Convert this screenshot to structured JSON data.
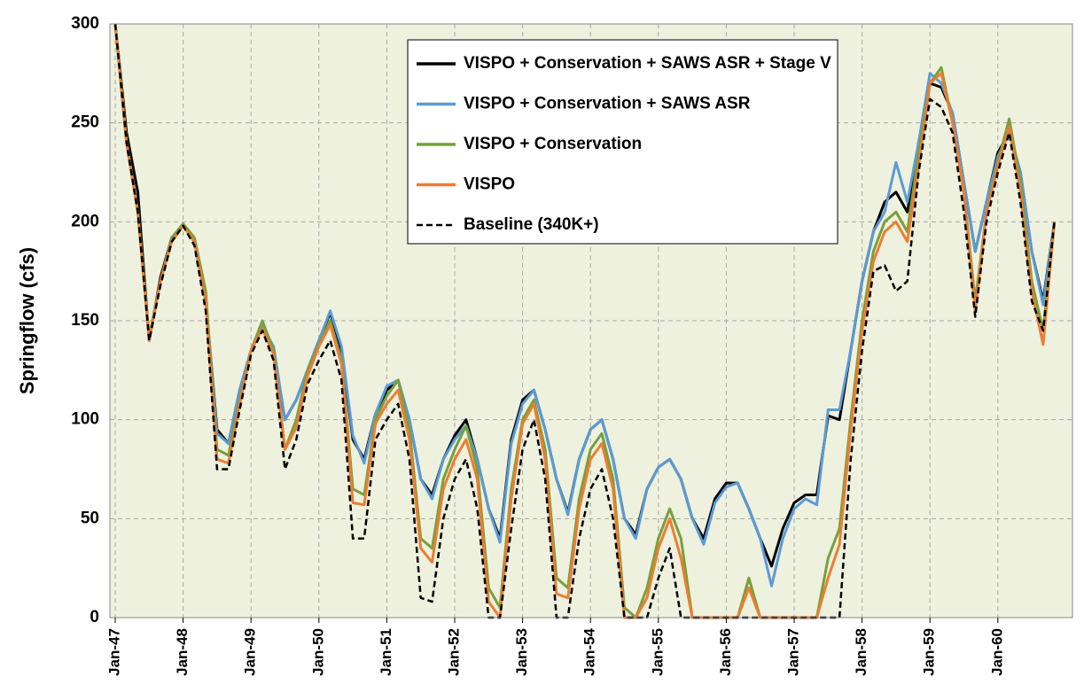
{
  "chart_data": {
    "type": "line",
    "y_label": "Springflow (cfs)",
    "categories": [
      "Jan-47",
      null,
      null,
      null,
      null,
      null,
      "Jan-48",
      null,
      null,
      null,
      null,
      null,
      "Jan-49",
      null,
      null,
      null,
      null,
      null,
      "Jan-50",
      null,
      null,
      null,
      null,
      null,
      "Jan-51",
      null,
      null,
      null,
      null,
      null,
      "Jan-52",
      null,
      null,
      null,
      null,
      null,
      "Jan-53",
      null,
      null,
      null,
      null,
      null,
      "Jan-54",
      null,
      null,
      null,
      null,
      null,
      "Jan-55",
      null,
      null,
      null,
      null,
      null,
      "Jan-56",
      null,
      null,
      null,
      null,
      null,
      "Jan-57",
      null,
      null,
      null,
      null,
      null,
      "Jan-58",
      null,
      null,
      null,
      null,
      null,
      "Jan-59",
      null,
      null,
      null,
      null,
      null,
      "Jan-60",
      null,
      null,
      null,
      null,
      null
    ],
    "ylim": [
      0,
      300
    ],
    "yticks": [
      0,
      50,
      100,
      150,
      200,
      250,
      300
    ],
    "grid": true,
    "series": [
      {
        "name": "VISPO + Conservation + SAWS ASR + Stage V",
        "color": "#000000",
        "dash": false,
        "values": [
          300,
          245,
          215,
          140,
          172,
          192,
          198,
          190,
          160,
          95,
          88,
          115,
          135,
          147,
          135,
          100,
          110,
          125,
          140,
          154,
          135,
          90,
          80,
          103,
          115,
          120,
          100,
          70,
          62,
          80,
          92,
          100,
          80,
          55,
          40,
          90,
          110,
          115,
          95,
          70,
          53,
          80,
          95,
          100,
          80,
          50,
          42,
          65,
          76,
          80,
          70,
          50,
          40,
          60,
          68,
          68,
          55,
          40,
          26,
          45,
          58,
          62,
          62,
          102,
          100,
          135,
          170,
          195,
          210,
          215,
          205,
          240,
          270,
          268,
          255,
          220,
          185,
          210,
          235,
          245,
          225,
          185,
          160,
          200
        ]
      },
      {
        "name": "VISPO + Conservation + SAWS ASR",
        "color": "#5b9bd5",
        "dash": false,
        "values": [
          300,
          240,
          205,
          142,
          170,
          192,
          198,
          190,
          160,
          93,
          88,
          115,
          135,
          147,
          137,
          100,
          110,
          125,
          140,
          155,
          137,
          92,
          78,
          103,
          117,
          120,
          100,
          70,
          60,
          80,
          90,
          97,
          80,
          55,
          38,
          88,
          108,
          115,
          95,
          70,
          52,
          80,
          95,
          100,
          80,
          50,
          40,
          65,
          76,
          80,
          70,
          50,
          37,
          58,
          66,
          68,
          55,
          40,
          16,
          40,
          55,
          60,
          57,
          105,
          105,
          135,
          170,
          195,
          205,
          230,
          210,
          240,
          275,
          270,
          255,
          220,
          185,
          210,
          233,
          245,
          225,
          185,
          158,
          200
        ]
      },
      {
        "name": "VISPO + Conservation",
        "color": "#77a03c",
        "dash": false,
        "values": [
          300,
          240,
          205,
          142,
          170,
          192,
          199,
          192,
          165,
          85,
          82,
          110,
          135,
          150,
          135,
          85,
          100,
          125,
          138,
          150,
          130,
          65,
          62,
          100,
          112,
          120,
          95,
          40,
          35,
          70,
          85,
          97,
          75,
          15,
          5,
          65,
          100,
          110,
          85,
          20,
          15,
          60,
          85,
          93,
          70,
          5,
          0,
          15,
          40,
          55,
          40,
          0,
          0,
          0,
          0,
          0,
          20,
          0,
          0,
          0,
          0,
          0,
          0,
          30,
          45,
          100,
          150,
          185,
          200,
          205,
          195,
          235,
          270,
          278,
          250,
          215,
          160,
          205,
          230,
          252,
          220,
          170,
          145,
          200
        ]
      },
      {
        "name": "VISPO",
        "color": "#ed7d31",
        "dash": false,
        "values": [
          300,
          240,
          205,
          140,
          170,
          190,
          198,
          190,
          160,
          80,
          78,
          108,
          135,
          146,
          133,
          85,
          96,
          122,
          137,
          148,
          128,
          58,
          57,
          98,
          108,
          115,
          90,
          35,
          28,
          65,
          80,
          90,
          70,
          8,
          0,
          60,
          98,
          108,
          80,
          12,
          10,
          55,
          80,
          88,
          65,
          0,
          0,
          10,
          35,
          50,
          30,
          0,
          0,
          0,
          0,
          0,
          15,
          0,
          0,
          0,
          0,
          0,
          0,
          20,
          37,
          95,
          145,
          180,
          195,
          200,
          190,
          228,
          270,
          275,
          250,
          215,
          155,
          205,
          228,
          248,
          215,
          165,
          138,
          200
        ]
      },
      {
        "name": "Baseline (340K+)",
        "color": "#000000",
        "dash": true,
        "values": [
          300,
          240,
          205,
          140,
          168,
          190,
          198,
          188,
          155,
          75,
          75,
          105,
          133,
          145,
          130,
          75,
          90,
          118,
          130,
          140,
          120,
          40,
          40,
          90,
          100,
          108,
          80,
          10,
          8,
          50,
          70,
          80,
          55,
          0,
          0,
          45,
          85,
          100,
          70,
          0,
          0,
          40,
          65,
          75,
          50,
          0,
          0,
          0,
          20,
          35,
          0,
          0,
          0,
          0,
          0,
          0,
          0,
          0,
          0,
          0,
          0,
          0,
          0,
          0,
          0,
          80,
          135,
          175,
          178,
          165,
          170,
          225,
          262,
          258,
          245,
          205,
          152,
          200,
          225,
          245,
          210,
          160,
          145,
          200
        ]
      }
    ]
  }
}
